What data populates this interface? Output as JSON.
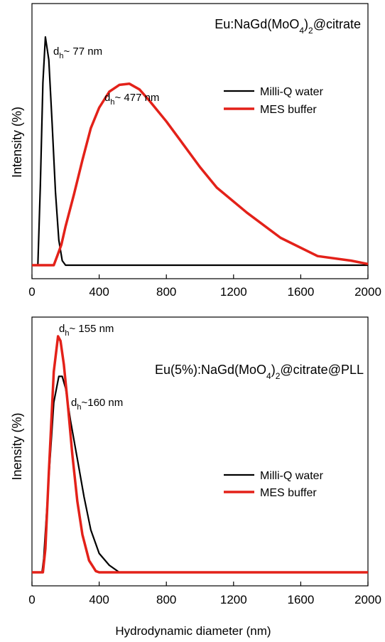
{
  "chart_data": [
    {
      "type": "line",
      "title": "Eu:NaGd(MoO4)2@citrate",
      "xlabel": "",
      "ylabel": "Intensity (%)",
      "xlim": [
        0,
        2000
      ],
      "ylim": [
        0,
        100
      ],
      "xticks": [
        "0",
        "400",
        "800",
        "1200",
        "1600",
        "2000"
      ],
      "yticks_visible": false,
      "grid": false,
      "legend": "center-right",
      "series": [
        {
          "name": "Milli-Q water",
          "color": "#000000",
          "x": [
            0,
            35,
            50,
            65,
            80,
            100,
            120,
            140,
            160,
            180,
            200,
            2000
          ],
          "y": [
            0,
            0,
            35,
            80,
            100,
            90,
            62,
            32,
            11,
            2,
            0,
            0
          ]
        },
        {
          "name": "MES buffer",
          "color": "#e32119",
          "x": [
            0,
            130,
            150,
            175,
            200,
            250,
            300,
            350,
            400,
            460,
            520,
            580,
            640,
            700,
            800,
            900,
            1000,
            1100,
            1280,
            1480,
            1700,
            1900,
            2000
          ],
          "y": [
            0,
            0,
            4,
            9,
            17,
            31,
            46,
            60,
            69,
            76,
            79,
            79.5,
            77,
            72,
            63,
            53,
            43,
            34,
            23,
            12,
            4,
            2,
            0.5
          ]
        }
      ],
      "annotations": [
        {
          "text": "d",
          "sub": "h",
          "after": "~ 77 nm",
          "x": 80,
          "y": 100
        },
        {
          "text": "d",
          "sub": "h",
          "after": "~ 477 nm",
          "x": 477,
          "y": 79.5
        }
      ]
    },
    {
      "type": "line",
      "title": "Eu(5%):NaGd(MoO4)2@citrate@PLL",
      "xlabel": "Hydrodynamic diameter (nm)",
      "ylabel": "Inensity (%)",
      "xlim": [
        0,
        2000
      ],
      "ylim": [
        0,
        100
      ],
      "xticks": [
        "0",
        "400",
        "800",
        "1200",
        "1600",
        "2000"
      ],
      "yticks_visible": false,
      "grid": false,
      "legend": "lower-right",
      "series": [
        {
          "name": "Milli-Q water",
          "color": "#000000",
          "x": [
            0,
            60,
            70,
            100,
            130,
            160,
            180,
            200,
            230,
            270,
            310,
            350,
            400,
            460,
            520,
            2000
          ],
          "y": [
            0,
            0,
            6,
            40,
            72,
            83,
            83,
            78,
            64,
            48,
            32,
            18,
            8,
            3,
            0,
            0
          ]
        },
        {
          "name": "MES buffer",
          "color": "#e32119",
          "x": [
            0,
            65,
            80,
            100,
            130,
            155,
            170,
            190,
            215,
            240,
            270,
            300,
            340,
            380,
            400,
            2000
          ],
          "y": [
            0,
            0,
            10,
            42,
            85,
            100,
            98,
            88,
            70,
            50,
            30,
            16,
            5,
            0.5,
            0,
            0
          ]
        }
      ],
      "annotations": [
        {
          "text": "d",
          "sub": "h",
          "after": "~ 155 nm",
          "x": 155,
          "y": 100
        },
        {
          "text": "d",
          "sub": "h",
          "after": "~160 nm",
          "x": 180,
          "y": 83
        }
      ]
    }
  ]
}
